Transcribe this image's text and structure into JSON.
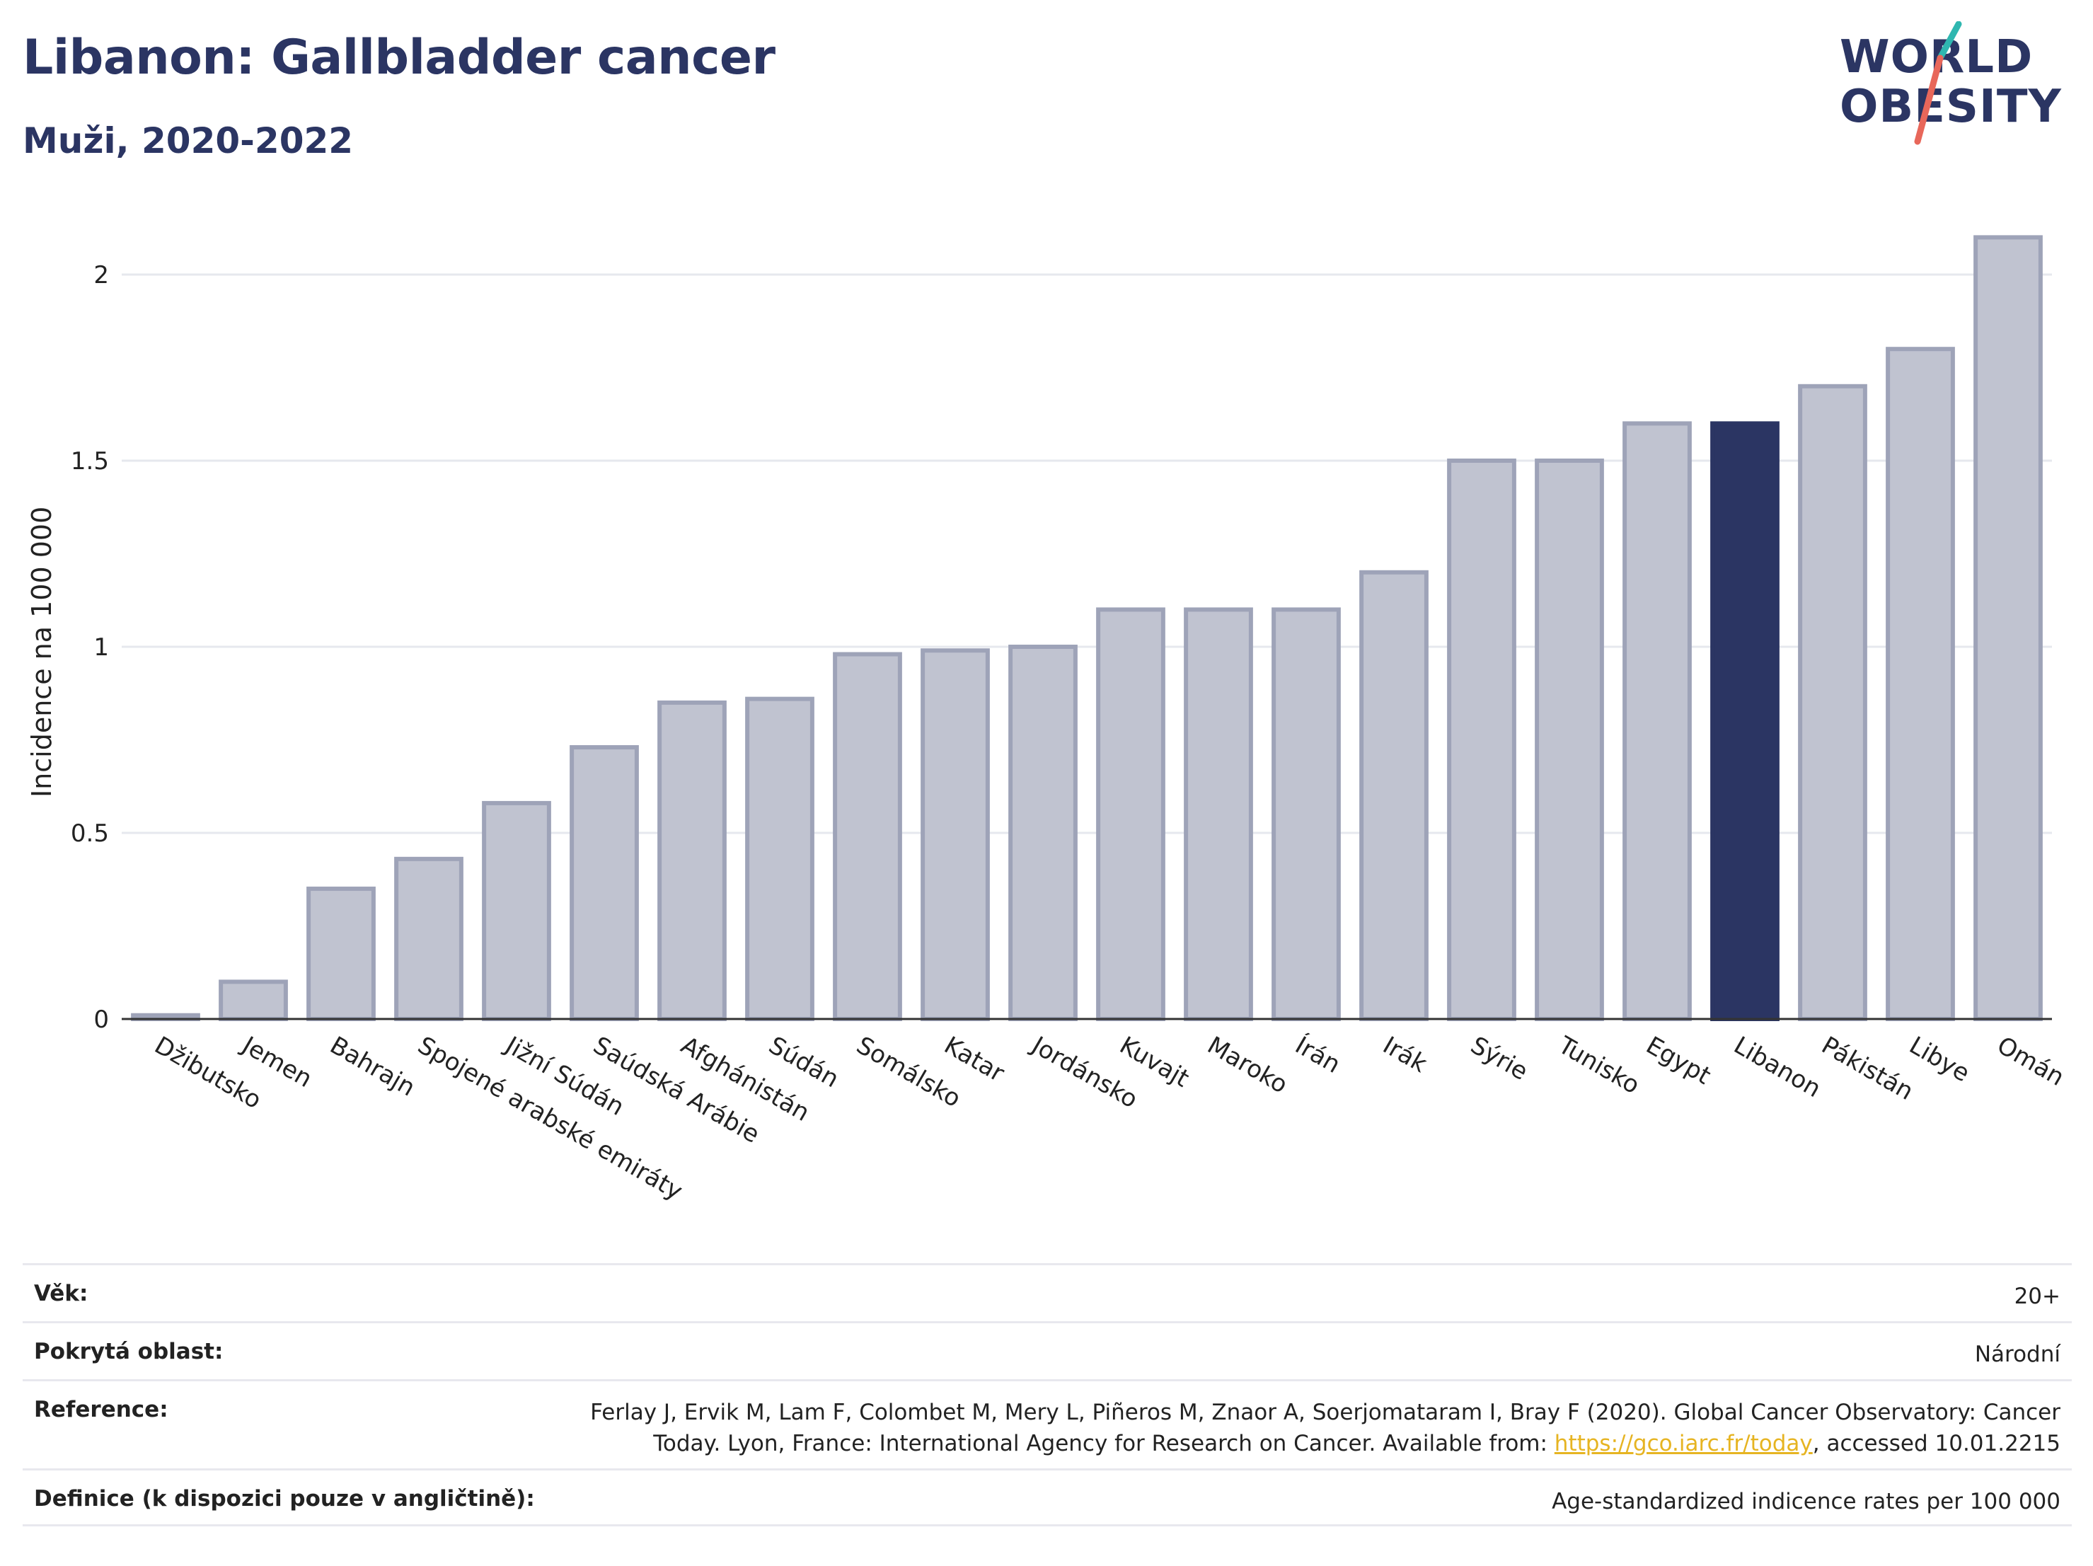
{
  "header": {
    "title": "Libanon: Gallbladder cancer",
    "subtitle": "Muži, 2020-2022",
    "logo_line1": "WORLD",
    "logo_line2": "OBESITY"
  },
  "colors": {
    "title": "#2b3563",
    "bar_default_fill": "#c0c3d0",
    "bar_default_stroke": "#9ea3b8",
    "bar_highlight": "#2b3563",
    "logo_teal": "#2fb7b0",
    "logo_coral": "#e8675a",
    "link": "#e6b422"
  },
  "chart_data": {
    "type": "bar",
    "ylabel": "Incidence na 100 000",
    "xlabel": "",
    "ylim": [
      0,
      2.2
    ],
    "yticks": [
      0,
      0.5,
      1,
      1.5,
      2
    ],
    "ytick_labels": [
      "0",
      "0.5",
      "1",
      "1.5",
      "2"
    ],
    "grid": true,
    "highlight": "Libanon",
    "categories": [
      "Džibutsko",
      "Jemen",
      "Bahrajn",
      "Spojené arabské emiráty",
      "Jižní Súdán",
      "Saúdská Arábie",
      "Afghánistán",
      "Súdán",
      "Somálsko",
      "Katar",
      "Jordánsko",
      "Kuvajt",
      "Maroko",
      "Írán",
      "Irák",
      "Sýrie",
      "Tunisko",
      "Egypt",
      "Libanon",
      "Pákistán",
      "Libye",
      "Omán"
    ],
    "values": [
      0.01,
      0.1,
      0.35,
      0.43,
      0.58,
      0.73,
      0.85,
      0.86,
      0.98,
      0.99,
      1.0,
      1.1,
      1.1,
      1.1,
      1.2,
      1.5,
      1.5,
      1.6,
      1.6,
      1.7,
      1.8,
      2.1
    ]
  },
  "info": {
    "rows": [
      {
        "label": "Věk:",
        "value": "20+"
      },
      {
        "label": "Pokrytá oblast:",
        "value": "Národní"
      },
      {
        "label": "Reference:",
        "value_line1": "Ferlay J, Ervik M, Lam F, Colombet M, Mery L, Piñeros M, Znaor A, Soerjomataram I, Bray F (2020). Global Cancer Observatory: Cancer",
        "value_line2_prefix": "Today. Lyon, France: International Agency for Research on Cancer. Available from: ",
        "link": "https://gco.iarc.fr/today",
        "value_line2_suffix": ", accessed 10.01.2215"
      },
      {
        "label": "Definice (k dispozici pouze v angličtině):",
        "value": "Age-standardized indicence rates per 100 000"
      }
    ]
  }
}
